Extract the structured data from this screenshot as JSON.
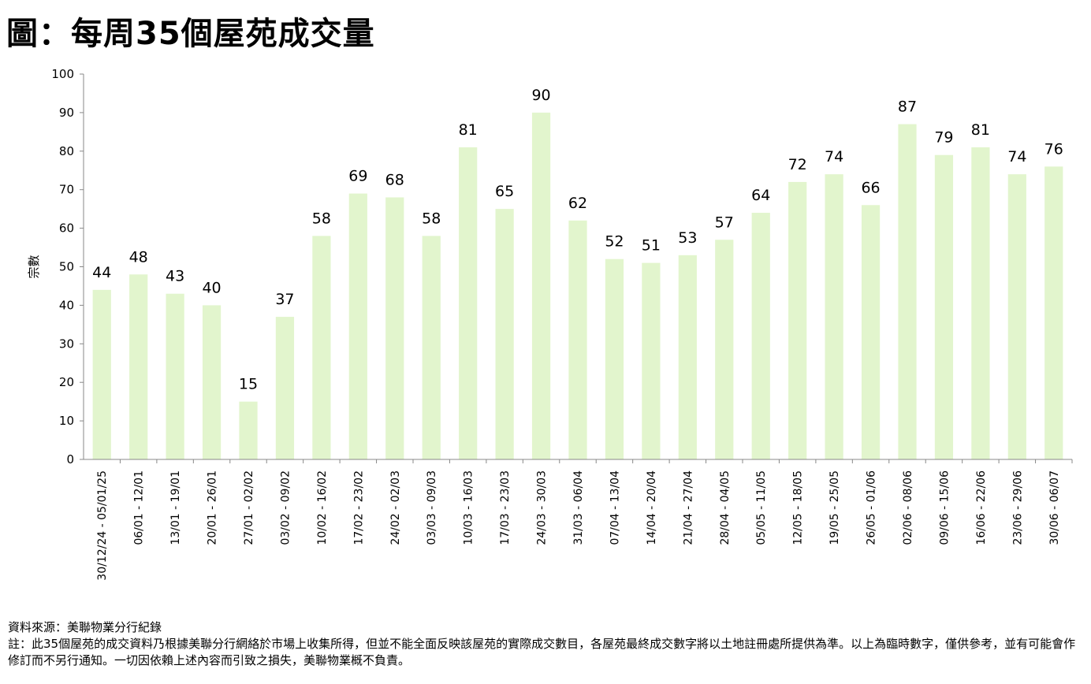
{
  "title": "圖：每周35個屋苑成交量",
  "chart_data": {
    "type": "bar",
    "ylabel": "宗數",
    "xlabel": "",
    "ylim": [
      0,
      100
    ],
    "yticks": [
      0,
      10,
      20,
      30,
      40,
      50,
      60,
      70,
      80,
      90,
      100
    ],
    "bar_color": "#E2F5CD",
    "categories": [
      "30/12/24 - 05/01/25",
      "06/01 - 12/01",
      "13/01 - 19/01",
      "20/01 - 26/01",
      "27/01 - 02/02",
      "03/02 - 09/02",
      "10/02 - 16/02",
      "17/02 - 23/02",
      "24/02 - 02/03",
      "03/03 - 09/03",
      "10/03 - 16/03",
      "17/03 - 23/03",
      "24/03 - 30/03",
      "31/03 - 06/04",
      "07/04 - 13/04",
      "14/04 - 20/04",
      "21/04 - 27/04",
      "28/04 - 04/05",
      "05/05 - 11/05",
      "12/05 - 18/05",
      "19/05 - 25/05",
      "26/05 - 01/06",
      "02/06 - 08/06",
      "09/06 - 15/06",
      "16/06 - 22/06",
      "23/06 - 29/06",
      "30/06 - 06/07"
    ],
    "values": [
      44,
      48,
      43,
      40,
      15,
      37,
      58,
      69,
      68,
      58,
      81,
      65,
      90,
      62,
      52,
      51,
      53,
      57,
      64,
      72,
      74,
      66,
      87,
      79,
      81,
      74,
      76
    ]
  },
  "footer": {
    "source": "資料來源：美聯物業分行紀錄",
    "note": "註：此35個屋苑的成交資料乃根據美聯分行網絡於市場上收集所得，但並不能全面反映該屋苑的實際成交數目，各屋苑最終成交數字將以土地註冊處所提供為準。以上為臨時數字，僅供參考，並有可能會作修訂而不另行通知。一切因依賴上述內容而引致之損失，美聯物業概不負責。"
  }
}
